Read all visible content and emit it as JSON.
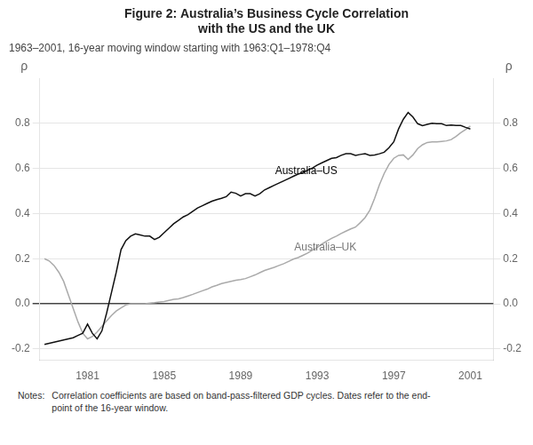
{
  "chart_data": {
    "type": "line",
    "title": [
      "Figure 2: Australia’s Business Cycle Correlation",
      "with the US and the UK"
    ],
    "subtitle": "1963–2001, 16-year moving window starting with 1963:Q1–1978:Q4",
    "y_label": "ρ",
    "y2_label": "ρ",
    "notes_label": "Notes:",
    "notes": "Correlation coefficients are based on band-pass-filtered GDP cycles. Dates refer to the end-\npoint of the 16-year window.",
    "annotations": [
      {
        "text": "Australia–US",
        "x": 1990.8,
        "y": 0.575,
        "color": "#000000"
      },
      {
        "text": "Australia–UK",
        "x": 1991.8,
        "y": 0.235,
        "color": "#777777"
      }
    ],
    "grid": true,
    "xlim": [
      1978.5,
      2002.2
    ],
    "xticks": [
      1981,
      1985,
      1989,
      1993,
      1997,
      2001
    ],
    "ylim": [
      -0.25,
      1.0
    ],
    "yticks": [
      -0.2,
      {
        "value": 0.0,
        "label": "0.0"
      },
      0.2,
      0.4,
      0.6,
      0.8
    ],
    "y2lim": [
      -0.25,
      1.0
    ],
    "y2ticks": [
      -0.2,
      {
        "value": 0.0,
        "label": "0.0"
      },
      0.2,
      0.4,
      0.6,
      0.8
    ],
    "x": [
      1978.75,
      1979.0,
      1979.25,
      1979.5,
      1979.75,
      1980.0,
      1980.25,
      1980.5,
      1980.75,
      1981.0,
      1981.25,
      1981.5,
      1981.75,
      1982.0,
      1982.25,
      1982.5,
      1982.75,
      1983.0,
      1983.25,
      1983.5,
      1983.75,
      1984.0,
      1984.25,
      1984.5,
      1984.75,
      1985.0,
      1985.25,
      1985.5,
      1985.75,
      1986.0,
      1986.25,
      1986.5,
      1986.75,
      1987.0,
      1987.25,
      1987.5,
      1987.75,
      1988.0,
      1988.25,
      1988.5,
      1988.75,
      1989.0,
      1989.25,
      1989.5,
      1989.75,
      1990.0,
      1990.25,
      1990.5,
      1990.75,
      1991.0,
      1991.25,
      1991.5,
      1991.75,
      1992.0,
      1992.25,
      1992.5,
      1992.75,
      1993.0,
      1993.25,
      1993.5,
      1993.75,
      1994.0,
      1994.25,
      1994.5,
      1994.75,
      1995.0,
      1995.25,
      1995.5,
      1995.75,
      1996.0,
      1996.25,
      1996.5,
      1996.75,
      1997.0,
      1997.25,
      1997.5,
      1997.75,
      1998.0,
      1998.25,
      1998.5,
      1998.75,
      1999.0,
      1999.25,
      1999.5,
      1999.75,
      2000.0,
      2000.25,
      2000.5,
      2000.75,
      2001.0
    ],
    "series": [
      {
        "name": "Australia–US",
        "color": "#111111",
        "values": [
          -0.18,
          -0.175,
          -0.17,
          -0.165,
          -0.16,
          -0.155,
          -0.15,
          -0.14,
          -0.13,
          -0.09,
          -0.13,
          -0.155,
          -0.12,
          -0.04,
          0.05,
          0.14,
          0.24,
          0.28,
          0.3,
          0.31,
          0.305,
          0.3,
          0.3,
          0.285,
          0.295,
          0.315,
          0.335,
          0.355,
          0.37,
          0.385,
          0.395,
          0.41,
          0.425,
          0.435,
          0.445,
          0.455,
          0.462,
          0.468,
          0.475,
          0.495,
          0.49,
          0.478,
          0.488,
          0.488,
          0.478,
          0.488,
          0.505,
          0.515,
          0.525,
          0.535,
          0.545,
          0.555,
          0.565,
          0.575,
          0.582,
          0.592,
          0.602,
          0.615,
          0.625,
          0.635,
          0.645,
          0.648,
          0.658,
          0.665,
          0.665,
          0.658,
          0.662,
          0.665,
          0.658,
          0.66,
          0.665,
          0.672,
          0.692,
          0.718,
          0.775,
          0.818,
          0.848,
          0.828,
          0.798,
          0.79,
          0.795,
          0.8,
          0.798,
          0.798,
          0.79,
          0.792,
          0.79,
          0.79,
          0.782,
          0.775
        ]
      },
      {
        "name": "Australia–UK",
        "color": "#aaaaaa",
        "values": [
          0.2,
          0.19,
          0.17,
          0.14,
          0.1,
          0.04,
          -0.02,
          -0.08,
          -0.13,
          -0.155,
          -0.145,
          -0.125,
          -0.1,
          -0.075,
          -0.052,
          -0.032,
          -0.018,
          -0.005,
          0.0,
          0.0,
          0.0,
          0.0,
          0.003,
          0.005,
          0.008,
          0.01,
          0.015,
          0.02,
          0.022,
          0.028,
          0.035,
          0.042,
          0.05,
          0.058,
          0.065,
          0.075,
          0.082,
          0.09,
          0.095,
          0.1,
          0.105,
          0.108,
          0.112,
          0.12,
          0.128,
          0.138,
          0.148,
          0.155,
          0.162,
          0.17,
          0.178,
          0.188,
          0.198,
          0.205,
          0.215,
          0.225,
          0.238,
          0.25,
          0.265,
          0.278,
          0.29,
          0.3,
          0.312,
          0.322,
          0.332,
          0.34,
          0.36,
          0.382,
          0.415,
          0.468,
          0.528,
          0.578,
          0.618,
          0.645,
          0.658,
          0.66,
          0.64,
          0.66,
          0.688,
          0.705,
          0.715,
          0.718,
          0.718,
          0.72,
          0.722,
          0.728,
          0.742,
          0.758,
          0.772,
          0.788
        ]
      }
    ]
  }
}
